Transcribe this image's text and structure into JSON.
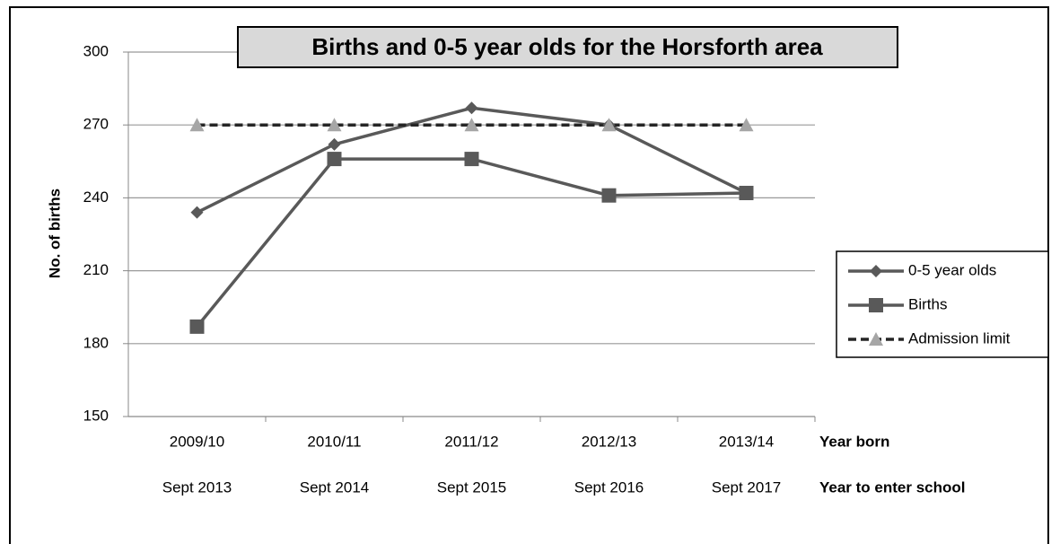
{
  "chart_data": {
    "type": "line",
    "title": "Births and 0-5 year olds for the Horsforth area",
    "ylabel": "No. of births",
    "category_label": "Year born",
    "school_year_label": "Year to enter school",
    "categories": [
      "2009/10",
      "2010/11",
      "2011/12",
      "2012/13",
      "2013/14"
    ],
    "school_years": [
      "Sept 2013",
      "Sept 2014",
      "Sept 2015",
      "Sept 2016",
      "Sept 2017"
    ],
    "series": [
      {
        "name": "0-5 year olds",
        "color": "#595959",
        "marker": "diamond",
        "dash": false,
        "values": [
          234,
          262,
          277,
          270,
          242
        ]
      },
      {
        "name": "Births",
        "color": "#595959",
        "marker": "square",
        "dash": false,
        "values": [
          187,
          256,
          256,
          241,
          242
        ]
      },
      {
        "name": "Admission limit",
        "color": "#262626",
        "marker_color": "#a6a6a6",
        "marker": "triangle",
        "dash": true,
        "values": [
          270,
          270,
          270,
          270,
          270
        ]
      }
    ],
    "ylim": [
      150,
      300
    ],
    "yticks": [
      150,
      180,
      210,
      240,
      270,
      300
    ],
    "grid": true,
    "legend": "right"
  }
}
